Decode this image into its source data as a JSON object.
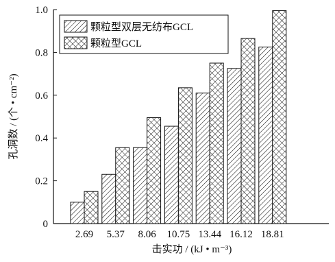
{
  "chart_data": {
    "type": "bar",
    "title": "",
    "xlabel": "击实功 / (kJ • m⁻³)",
    "ylabel": "孔洞数 / (个 • cm⁻²)",
    "categories": [
      "2.69",
      "5.37",
      "8.06",
      "10.75",
      "13.44",
      "16.12",
      "18.81"
    ],
    "ylim": [
      0,
      1.0
    ],
    "yticks": [
      "0",
      "0.2",
      "0.4",
      "0.6",
      "0.8",
      "1.0"
    ],
    "grid": false,
    "legend_position": "top-left",
    "series": [
      {
        "name": "颗粒型双层无纺布GCL",
        "pattern": "diagonal-hatch",
        "values": [
          0.1,
          0.23,
          0.355,
          0.455,
          0.61,
          0.725,
          0.825
        ]
      },
      {
        "name": "颗粒型GCL",
        "pattern": "cross-hatch",
        "values": [
          0.15,
          0.355,
          0.495,
          0.635,
          0.75,
          0.865,
          0.995
        ]
      }
    ],
    "colors": {
      "axis": "#111111",
      "bar_fill": "#ffffff",
      "hatch": "#111111"
    }
  }
}
